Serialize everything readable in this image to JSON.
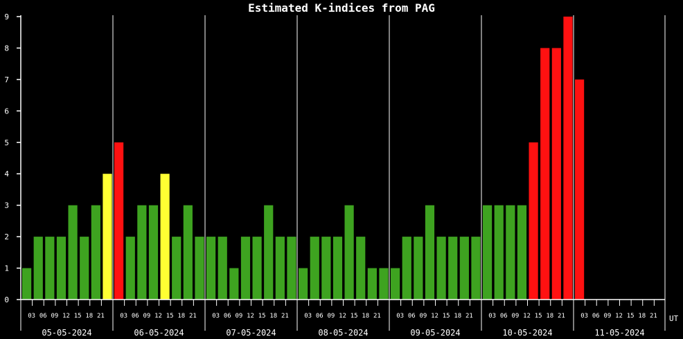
{
  "chart_data": {
    "type": "bar",
    "title": "Estimated K-indices from PAG",
    "xlabel": "UT",
    "ylabel": "",
    "ylim": [
      0,
      9
    ],
    "y_ticks": [
      "0",
      "1",
      "2",
      "3",
      "4",
      "5",
      "6",
      "7",
      "8",
      "9"
    ],
    "grid": false,
    "days": [
      "05-05-2024",
      "06-05-2024",
      "07-05-2024",
      "08-05-2024",
      "09-05-2024",
      "10-05-2024",
      "11-05-2024"
    ],
    "hour_labels": [
      "03",
      "06",
      "09",
      "12",
      "15",
      "18",
      "21"
    ],
    "values": [
      1,
      2,
      2,
      2,
      3,
      2,
      3,
      4,
      5,
      2,
      3,
      3,
      4,
      2,
      3,
      2,
      2,
      2,
      1,
      2,
      2,
      3,
      2,
      2,
      1,
      2,
      2,
      2,
      3,
      2,
      1,
      1,
      1,
      2,
      2,
      3,
      2,
      2,
      2,
      2,
      3,
      3,
      3,
      3,
      5,
      8,
      8,
      9,
      7
    ],
    "colors": {
      "quiet": "#3ea320",
      "active": "#ffff33",
      "storm": "#ff1111",
      "axis": "#ffffff",
      "background": "#000000"
    },
    "thresholds": {
      "active": 4,
      "storm": 5
    }
  }
}
